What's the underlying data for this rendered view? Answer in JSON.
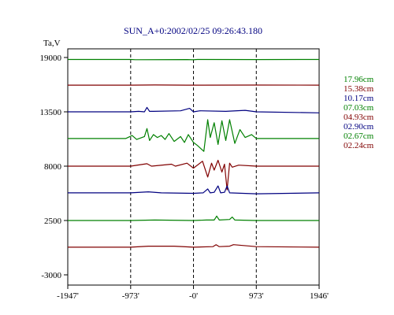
{
  "chart_data": {
    "type": "line",
    "title": "SUN_A+0:2002/02/25 09:26:43.180",
    "ylabel": "Ta,V",
    "xlabel": "",
    "xlim": [
      -1947,
      1946
    ],
    "ylim": [
      -3000,
      19000
    ],
    "x_ticks": [
      -1947,
      -973,
      0,
      973,
      1946
    ],
    "x_tick_labels": [
      "-1947'",
      "-973'",
      "-0'",
      "973'",
      "1946'"
    ],
    "y_ticks": [
      19000,
      13500,
      8000,
      2500,
      -3000
    ],
    "y_tick_labels": [
      "19000",
      "13500",
      "8000",
      "2500",
      "-3000"
    ],
    "grid": "dashed vertical lines at -973', -0', 973'",
    "legend_position": "right",
    "series": [
      {
        "name": "17.96cm",
        "color": "#008000",
        "baseline": 18800,
        "x": [
          -1947,
          -973,
          -900,
          -100,
          0,
          60,
          973,
          1946
        ],
        "y": [
          18800,
          18800,
          18780,
          18790,
          18770,
          18800,
          18790,
          18800
        ]
      },
      {
        "name": "15.38cm",
        "color": "#800000",
        "baseline": 16200,
        "x": [
          -1947,
          -973,
          -600,
          -100,
          0,
          973,
          1946
        ],
        "y": [
          16200,
          16200,
          16220,
          16200,
          16200,
          16210,
          16200
        ]
      },
      {
        "name": "10.17cm",
        "color": "#000080",
        "baseline": 13500,
        "x": [
          -1947,
          -973,
          -850,
          -760,
          -720,
          -680,
          -620,
          -200,
          -60,
          0,
          100,
          500,
          800,
          973,
          1946
        ],
        "y": [
          13500,
          13500,
          13550,
          13500,
          13950,
          13550,
          13550,
          13600,
          13850,
          13500,
          13600,
          13550,
          13650,
          13500,
          13400
        ]
      },
      {
        "name": "07.03cm",
        "color": "#008000",
        "baseline": 10800,
        "x": [
          -1947,
          -1050,
          -950,
          -880,
          -760,
          -720,
          -680,
          -620,
          -560,
          -500,
          -440,
          -380,
          -300,
          -200,
          -140,
          -80,
          0,
          60,
          160,
          220,
          260,
          320,
          380,
          440,
          500,
          560,
          640,
          720,
          800,
          900,
          973,
          1946
        ],
        "y": [
          10800,
          10800,
          11100,
          10700,
          11000,
          11800,
          10600,
          11200,
          10900,
          11100,
          10700,
          11300,
          10500,
          11000,
          10400,
          11200,
          10400,
          10100,
          9500,
          12700,
          10900,
          12400,
          10200,
          12600,
          10600,
          12700,
          10300,
          11700,
          10900,
          11200,
          10800,
          10800
        ]
      },
      {
        "name": "04.93cm",
        "color": "#800000",
        "baseline": 8000,
        "x": [
          -1947,
          -973,
          -720,
          -650,
          -340,
          -280,
          -100,
          0,
          140,
          220,
          280,
          320,
          380,
          440,
          480,
          520,
          560,
          600,
          700,
          973,
          1946
        ],
        "y": [
          8000,
          8000,
          8250,
          8000,
          8200,
          8000,
          8300,
          7800,
          8500,
          6900,
          8300,
          7600,
          8600,
          7400,
          8200,
          5600,
          8300,
          7900,
          8100,
          8000,
          8000
        ]
      },
      {
        "name": "02.90cm",
        "color": "#000080",
        "baseline": 5300,
        "x": [
          -1947,
          -973,
          -700,
          -500,
          0,
          150,
          220,
          260,
          320,
          380,
          420,
          480,
          520,
          560,
          973,
          1946
        ],
        "y": [
          5300,
          5300,
          5400,
          5300,
          5250,
          5300,
          5700,
          5300,
          5350,
          6000,
          5300,
          5350,
          6000,
          5300,
          5200,
          5300
        ]
      },
      {
        "name": "02.67cm",
        "color": "#008000",
        "baseline": 2500,
        "x": [
          -1947,
          -973,
          -600,
          0,
          200,
          320,
          360,
          400,
          560,
          600,
          640,
          973,
          1946
        ],
        "y": [
          2500,
          2500,
          2550,
          2500,
          2550,
          2550,
          2950,
          2550,
          2600,
          2850,
          2550,
          2500,
          2500
        ]
      },
      {
        "name": "02.24cm",
        "color": "#800000",
        "baseline": -200,
        "x": [
          -1947,
          -973,
          -700,
          -300,
          0,
          300,
          350,
          400,
          560,
          620,
          973,
          1946
        ],
        "y": [
          -200,
          -200,
          -100,
          -100,
          -200,
          -150,
          50,
          -150,
          -100,
          50,
          -150,
          -200
        ]
      }
    ]
  }
}
